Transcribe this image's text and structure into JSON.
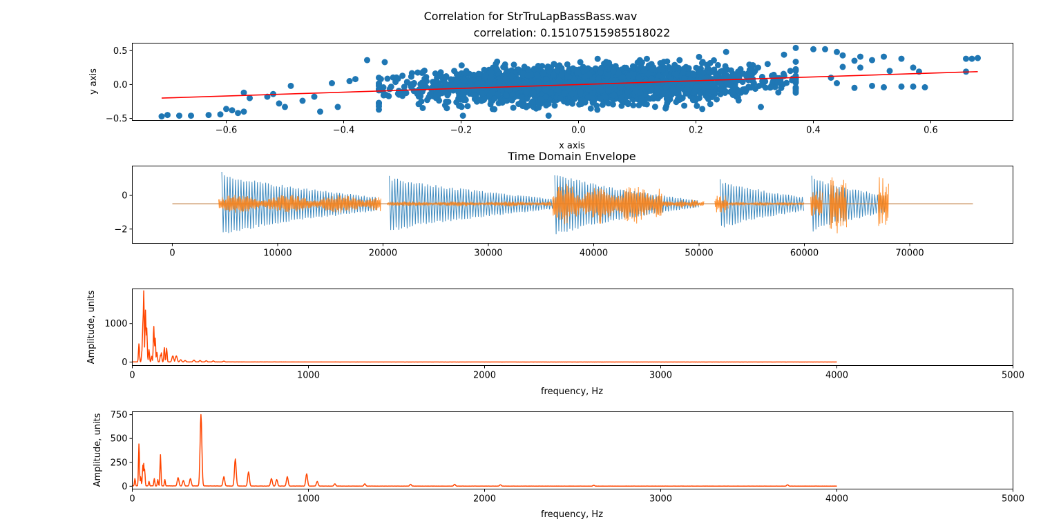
{
  "figure": {
    "suptitle": "Correlation for StrTruLapBassBass.wav",
    "colors": {
      "scatter": "#1f77b4",
      "fit_line": "#ff0000",
      "envelope_a": "#1f77b4",
      "envelope_b": "#ff7f0e",
      "spectrum": "#ff4500"
    }
  },
  "chart_data": [
    {
      "id": "scatter",
      "type": "scatter",
      "title": "correlation: 0.15107515985518022",
      "xlabel": "x axis",
      "ylabel": "y axis",
      "xlim": [
        -0.76,
        0.74
      ],
      "ylim": [
        -0.53,
        0.61
      ],
      "xticks": [
        -0.6,
        -0.4,
        -0.2,
        0.0,
        0.2,
        0.4,
        0.6
      ],
      "xticklabels": [
        "−0.6",
        "−0.4",
        "−0.2",
        "0.0",
        "0.2",
        "0.4",
        "0.6"
      ],
      "yticks": [
        -0.5,
        0.0,
        0.5
      ],
      "yticklabels": [
        "−0.5",
        "0.0",
        "0.5"
      ],
      "fit_line": {
        "x": [
          -0.71,
          0.68
        ],
        "y": [
          -0.2,
          0.19
        ]
      },
      "outliers": [
        [
          -0.71,
          -0.47
        ],
        [
          -0.7,
          -0.45
        ],
        [
          -0.68,
          -0.46
        ],
        [
          -0.66,
          -0.46
        ],
        [
          -0.63,
          -0.45
        ],
        [
          -0.61,
          -0.44
        ],
        [
          -0.6,
          -0.36
        ],
        [
          -0.59,
          -0.38
        ],
        [
          -0.58,
          -0.42
        ],
        [
          -0.57,
          -0.4
        ],
        [
          -0.56,
          -0.2
        ],
        [
          -0.57,
          -0.12
        ],
        [
          -0.53,
          -0.18
        ],
        [
          -0.52,
          -0.14
        ],
        [
          -0.51,
          -0.28
        ],
        [
          -0.5,
          -0.33
        ],
        [
          -0.47,
          -0.24
        ],
        [
          -0.45,
          -0.18
        ],
        [
          -0.44,
          -0.4
        ],
        [
          -0.49,
          -0.02
        ],
        [
          -0.42,
          0.02
        ],
        [
          -0.41,
          -0.33
        ],
        [
          -0.39,
          0.05
        ],
        [
          -0.38,
          0.08
        ],
        [
          -0.36,
          0.36
        ],
        [
          -0.34,
          -0.37
        ],
        [
          -0.33,
          0.33
        ],
        [
          0.42,
          0.52
        ],
        [
          0.44,
          0.48
        ],
        [
          0.45,
          0.43
        ],
        [
          0.47,
          0.35
        ],
        [
          0.48,
          0.25
        ],
        [
          0.5,
          0.36
        ],
        [
          0.52,
          0.41
        ],
        [
          0.53,
          0.2
        ],
        [
          0.55,
          0.38
        ],
        [
          0.57,
          0.25
        ],
        [
          0.58,
          0.19
        ],
        [
          0.66,
          0.38
        ],
        [
          0.67,
          0.38
        ],
        [
          0.68,
          0.39
        ],
        [
          0.66,
          0.19
        ],
        [
          0.5,
          -0.02
        ],
        [
          0.52,
          -0.04
        ],
        [
          0.55,
          -0.03
        ],
        [
          0.57,
          -0.03
        ],
        [
          0.59,
          -0.04
        ],
        [
          0.47,
          -0.05
        ],
        [
          0.44,
          0.02
        ],
        [
          0.4,
          0.52
        ],
        [
          0.37,
          0.54
        ],
        [
          0.35,
          0.44
        ],
        [
          0.48,
          0.41
        ],
        [
          0.45,
          0.26
        ],
        [
          0.43,
          0.1
        ]
      ]
    },
    {
      "id": "envelope",
      "type": "line",
      "title": "Time Domain Envelope",
      "xlabel": "",
      "ylabel": "",
      "xlim": [
        -3800,
        79800
      ],
      "ylim": [
        -2.85,
        1.75
      ],
      "xticks": [
        0,
        10000,
        20000,
        30000,
        40000,
        50000,
        60000,
        70000
      ],
      "xticklabels": [
        "0",
        "10000",
        "20000",
        "30000",
        "40000",
        "50000",
        "60000",
        "70000"
      ],
      "yticks": [
        -2,
        0
      ],
      "yticklabels": [
        "−2",
        "0"
      ],
      "baseline": -0.5,
      "total_samples": 76000,
      "series_a_segments": [
        {
          "start": 4700,
          "end": 19500,
          "amp_start": 1.9,
          "amp_end": 0.4
        },
        {
          "start": 20600,
          "end": 36300,
          "amp_start": 1.7,
          "amp_end": 0.3
        },
        {
          "start": 36300,
          "end": 50000,
          "amp_start": 1.9,
          "amp_end": 0.2
        },
        {
          "start": 52000,
          "end": 60000,
          "amp_start": 1.5,
          "amp_end": 0.4
        },
        {
          "start": 60700,
          "end": 67800,
          "amp_start": 1.7,
          "amp_end": 0.5
        }
      ],
      "series_b_bursts": [
        {
          "start": 4400,
          "end": 19800,
          "amp": 0.55
        },
        {
          "start": 20400,
          "end": 36000,
          "amp": 0.15
        },
        {
          "start": 36100,
          "end": 46500,
          "amp": 1.2
        },
        {
          "start": 46500,
          "end": 50500,
          "amp": 0.25
        },
        {
          "start": 51500,
          "end": 52800,
          "amp": 0.55
        },
        {
          "start": 52800,
          "end": 60000,
          "amp": 0.1
        },
        {
          "start": 60600,
          "end": 61700,
          "amp": 0.9
        },
        {
          "start": 62400,
          "end": 64000,
          "amp": 1.85
        },
        {
          "start": 67000,
          "end": 68000,
          "amp": 1.6
        }
      ]
    },
    {
      "id": "spectrum_1",
      "type": "line",
      "title": "",
      "xlabel": "frequency, Hz",
      "ylabel": "Amplitude, units",
      "xlim": [
        0,
        5000
      ],
      "ylim": [
        -90,
        1900
      ],
      "xticks": [
        0,
        1000,
        2000,
        3000,
        4000,
        5000
      ],
      "xticklabels": [
        "0",
        "1000",
        "2000",
        "3000",
        "4000",
        "5000"
      ],
      "yticks": [
        0,
        1000
      ],
      "yticklabels": [
        "0",
        "1000"
      ],
      "x_max": 4000,
      "peaks": [
        {
          "f": 38,
          "a": 480
        },
        {
          "f": 55,
          "a": 300
        },
        {
          "f": 60,
          "a": 1000
        },
        {
          "f": 65,
          "a": 1850
        },
        {
          "f": 75,
          "a": 1350
        },
        {
          "f": 82,
          "a": 900
        },
        {
          "f": 95,
          "a": 320
        },
        {
          "f": 110,
          "a": 150
        },
        {
          "f": 122,
          "a": 940
        },
        {
          "f": 130,
          "a": 620
        },
        {
          "f": 140,
          "a": 250
        },
        {
          "f": 160,
          "a": 180
        },
        {
          "f": 165,
          "a": 240
        },
        {
          "f": 182,
          "a": 380
        },
        {
          "f": 195,
          "a": 360
        },
        {
          "f": 230,
          "a": 160
        },
        {
          "f": 250,
          "a": 160
        },
        {
          "f": 275,
          "a": 60
        },
        {
          "f": 300,
          "a": 40
        },
        {
          "f": 350,
          "a": 50
        },
        {
          "f": 385,
          "a": 40
        },
        {
          "f": 420,
          "a": 35
        },
        {
          "f": 460,
          "a": 30
        },
        {
          "f": 520,
          "a": 25
        }
      ]
    },
    {
      "id": "spectrum_2",
      "type": "line",
      "title": "",
      "xlabel": "frequency, Hz",
      "ylabel": "Amplitude, units",
      "xlim": [
        0,
        5000
      ],
      "ylim": [
        -30,
        780
      ],
      "xticks": [
        0,
        1000,
        2000,
        3000,
        4000,
        5000
      ],
      "xticklabels": [
        "0",
        "1000",
        "2000",
        "3000",
        "4000",
        "5000"
      ],
      "yticks": [
        0,
        250,
        500,
        750
      ],
      "yticklabels": [
        "0",
        "250",
        "500",
        "750"
      ],
      "x_max": 4000,
      "peaks": [
        {
          "f": 15,
          "a": 80
        },
        {
          "f": 38,
          "a": 450
        },
        {
          "f": 48,
          "a": 100
        },
        {
          "f": 60,
          "a": 220
        },
        {
          "f": 65,
          "a": 240
        },
        {
          "f": 70,
          "a": 180
        },
        {
          "f": 95,
          "a": 50
        },
        {
          "f": 125,
          "a": 80
        },
        {
          "f": 145,
          "a": 70
        },
        {
          "f": 160,
          "a": 330
        },
        {
          "f": 185,
          "a": 70
        },
        {
          "f": 260,
          "a": 90
        },
        {
          "f": 290,
          "a": 60
        },
        {
          "f": 330,
          "a": 80
        },
        {
          "f": 390,
          "a": 750
        },
        {
          "f": 520,
          "a": 100
        },
        {
          "f": 585,
          "a": 285
        },
        {
          "f": 660,
          "a": 150
        },
        {
          "f": 790,
          "a": 80
        },
        {
          "f": 820,
          "a": 70
        },
        {
          "f": 880,
          "a": 100
        },
        {
          "f": 990,
          "a": 130
        },
        {
          "f": 1050,
          "a": 50
        },
        {
          "f": 1150,
          "a": 25
        },
        {
          "f": 1320,
          "a": 25
        },
        {
          "f": 1580,
          "a": 20
        },
        {
          "f": 1830,
          "a": 20
        },
        {
          "f": 2090,
          "a": 15
        },
        {
          "f": 2620,
          "a": 10
        },
        {
          "f": 3720,
          "a": 15
        }
      ]
    }
  ]
}
